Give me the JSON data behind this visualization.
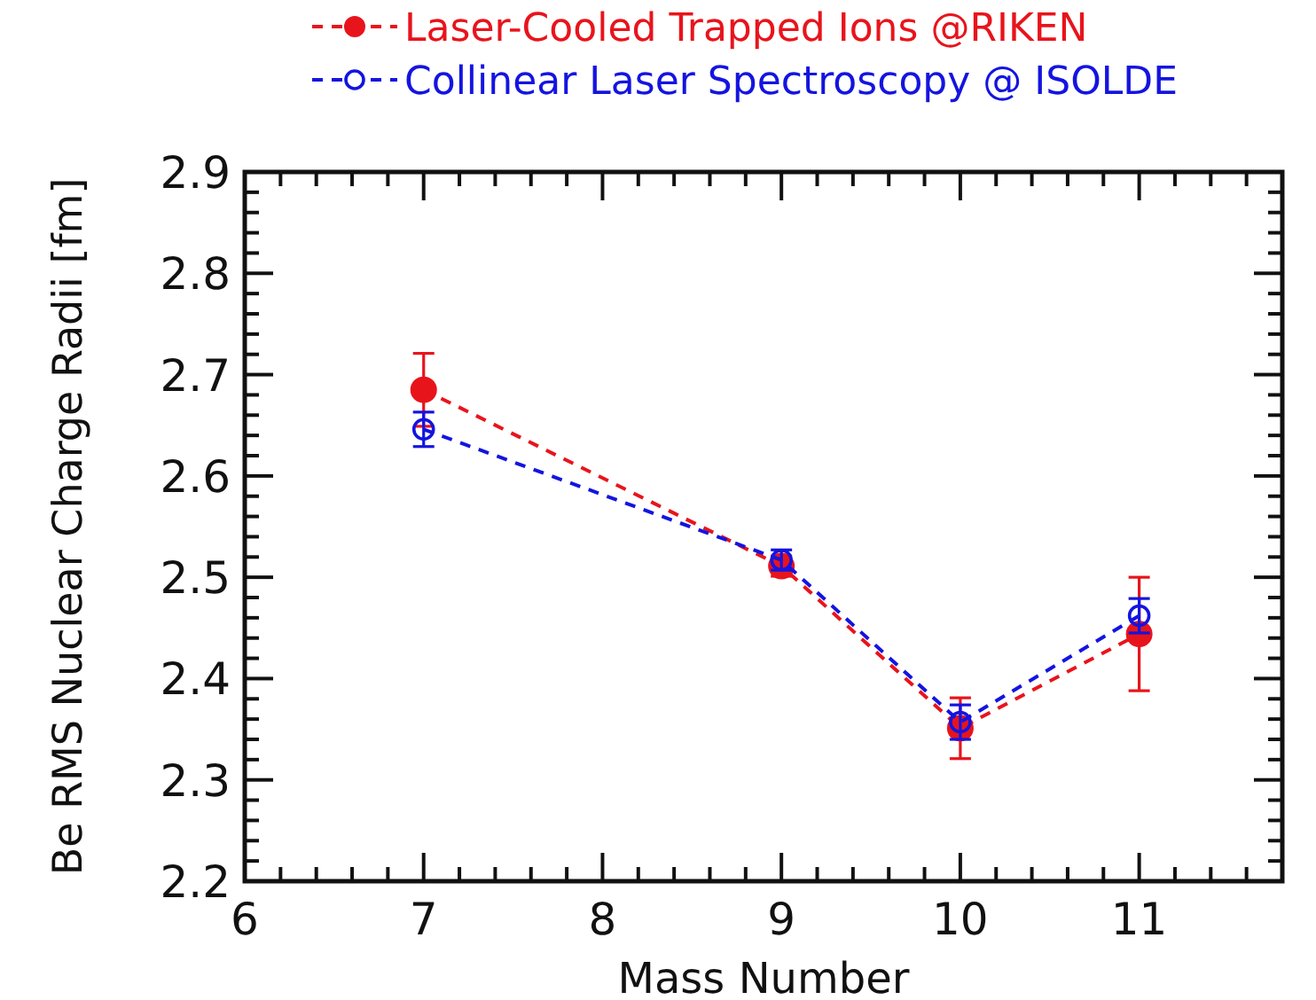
{
  "chart_data": {
    "type": "line",
    "xlabel": "Mass Number",
    "ylabel": "Be RMS Nuclear Charge Radii [fm]",
    "x": [
      7,
      9,
      10,
      11
    ],
    "series": [
      {
        "name": "Laser-Cooled Trapped Ions @RIKEN",
        "color": "#e8141c",
        "values": [
          2.685,
          2.511,
          2.351,
          2.444
        ],
        "errors": [
          0.036,
          0.01,
          0.03,
          0.056
        ],
        "marker": "circle"
      },
      {
        "name": "Collinear Laser Spectroscopy @ ISOLDE",
        "color": "#1414e0",
        "values": [
          2.646,
          2.517,
          2.357,
          2.462
        ],
        "errors": [
          0.017,
          0.01,
          0.017,
          0.017
        ],
        "marker": "circle"
      }
    ],
    "line_style": "dashed",
    "legend": "top",
    "grid": false,
    "xlim": [
      6,
      11.8
    ],
    "xticks": [
      6,
      {
        "value": 6.2,
        "label": null
      },
      {
        "value": 6.4,
        "label": null
      },
      {
        "value": 6.6,
        "label": null
      },
      {
        "value": 6.8,
        "label": null
      },
      7,
      {
        "value": 7.2,
        "label": null
      },
      {
        "value": 7.4,
        "label": null
      },
      {
        "value": 7.6,
        "label": null
      },
      {
        "value": 7.8,
        "label": null
      },
      8,
      {
        "value": 8.2,
        "label": null
      },
      {
        "value": 8.4,
        "label": null
      },
      {
        "value": 8.6,
        "label": null
      },
      {
        "value": 8.8,
        "label": null
      },
      9,
      {
        "value": 9.2,
        "label": null
      },
      {
        "value": 9.4,
        "label": null
      },
      {
        "value": 9.6,
        "label": null
      },
      {
        "value": 9.8,
        "label": null
      },
      10,
      {
        "value": 10.2,
        "label": null
      },
      {
        "value": 10.4,
        "label": null
      },
      {
        "value": 10.6,
        "label": null
      },
      {
        "value": 10.8,
        "label": null
      },
      11,
      {
        "value": 11.2,
        "label": null
      },
      {
        "value": 11.4,
        "label": null
      },
      {
        "value": 11.6,
        "label": null
      }
    ],
    "ylim": [
      2.2,
      2.9
    ],
    "yticks": [
      {
        "value": 2.2,
        "label": "2.2"
      },
      {
        "value": 2.22,
        "label": null
      },
      {
        "value": 2.24,
        "label": null
      },
      {
        "value": 2.26,
        "label": null
      },
      {
        "value": 2.28,
        "label": null
      },
      {
        "value": 2.3,
        "label": "2.3"
      },
      {
        "value": 2.32,
        "label": null
      },
      {
        "value": 2.34,
        "label": null
      },
      {
        "value": 2.36,
        "label": null
      },
      {
        "value": 2.38,
        "label": null
      },
      {
        "value": 2.4,
        "label": "2.4"
      },
      {
        "value": 2.42,
        "label": null
      },
      {
        "value": 2.44,
        "label": null
      },
      {
        "value": 2.46,
        "label": null
      },
      {
        "value": 2.48,
        "label": null
      },
      {
        "value": 2.5,
        "label": "2.5"
      },
      {
        "value": 2.52,
        "label": null
      },
      {
        "value": 2.54,
        "label": null
      },
      {
        "value": 2.56,
        "label": null
      },
      {
        "value": 2.58,
        "label": null
      },
      {
        "value": 2.6,
        "label": "2.6"
      },
      {
        "value": 2.62,
        "label": null
      },
      {
        "value": 2.64,
        "label": null
      },
      {
        "value": 2.66,
        "label": null
      },
      {
        "value": 2.68,
        "label": null
      },
      {
        "value": 2.7,
        "label": "2.7"
      },
      {
        "value": 2.72,
        "label": null
      },
      {
        "value": 2.74,
        "label": null
      },
      {
        "value": 2.76,
        "label": null
      },
      {
        "value": 2.78,
        "label": null
      },
      {
        "value": 2.8,
        "label": "2.8"
      },
      {
        "value": 2.82,
        "label": null
      },
      {
        "value": 2.84,
        "label": null
      },
      {
        "value": 2.86,
        "label": null
      },
      {
        "value": 2.88,
        "label": null
      },
      {
        "value": 2.9,
        "label": "2.9"
      }
    ]
  }
}
